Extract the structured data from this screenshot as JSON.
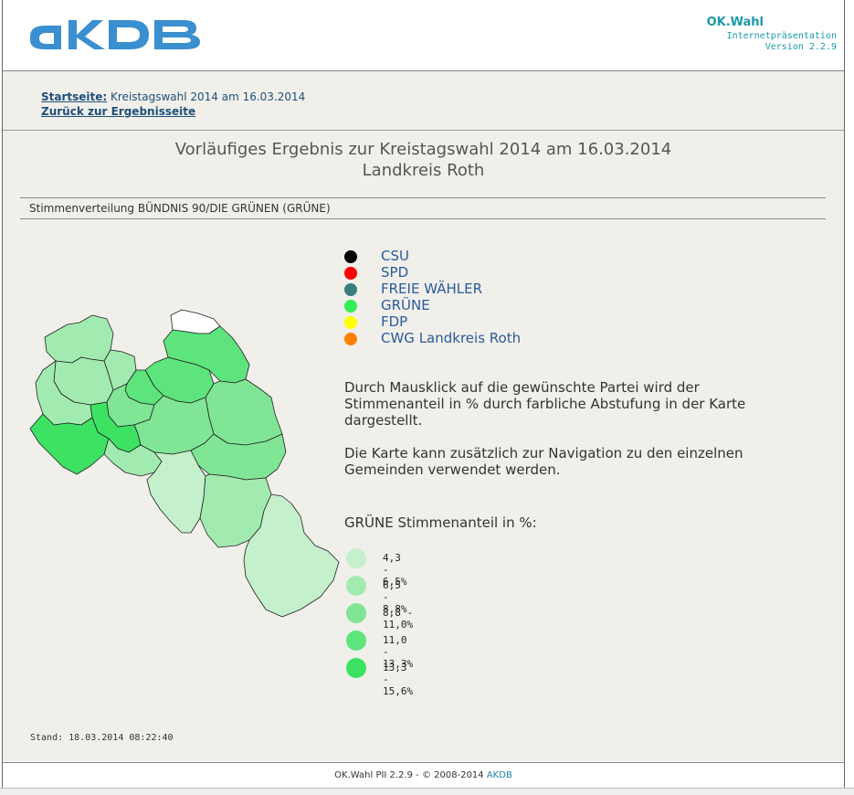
{
  "header": {
    "logo_text": "AKDB",
    "app_name": "OK.Wahl",
    "app_sub1": "Internetpräsentation",
    "app_sub2": "Version 2.2.9"
  },
  "nav": {
    "home_link": "Startseite:",
    "home_text": " Kreistagswahl 2014 am 16.03.2014",
    "back_link": "Zurück zur Ergebnisseite"
  },
  "main": {
    "title1": "Vorläufiges Ergebnis zur Kreistagswahl 2014 am 16.03.2014",
    "title2": "Landkreis Roth",
    "section_title": "Stimmenverteilung BÜNDNIS 90/DIE GRÜNEN (GRÜNE)",
    "parties": [
      {
        "label": "CSU",
        "color": "#000000"
      },
      {
        "label": "SPD",
        "color": "#ff0000"
      },
      {
        "label": "FREIE WÄHLER",
        "color": "#3a7f7f"
      },
      {
        "label": "GRÜNE",
        "color": "#33ee55"
      },
      {
        "label": "FDP",
        "color": "#ffff00"
      },
      {
        "label": "CWG Landkreis Roth",
        "color": "#ff8000"
      }
    ],
    "info1": "Durch Mausklick auf die gewünschte Partei wird der Stimmenanteil in % durch farbliche Abstufung in der Karte dargestellt.",
    "info2": "Die Karte kann zusätzlich zur Navigation zu den einzelnen Gemeinden verwendet werden.",
    "scale_title": "GRÜNE Stimmenanteil in %:",
    "scale": [
      {
        "label": "4,3 - 6,5%",
        "color": "#c4f0cc"
      },
      {
        "label": "6,5 - 8,8%",
        "color": "#a2ebb0"
      },
      {
        "label": "8,8 - 11,0%",
        "color": "#80e696"
      },
      {
        "label": "11,0 - 13,3%",
        "color": "#5ee47c"
      },
      {
        "label": "13,3 - 15,6%",
        "color": "#3de263"
      }
    ],
    "stand": "Stand: 18.03.2014 08:22:40"
  },
  "footer": {
    "text": "OK.Wahl PII 2.2.9 - © 2008-2014 ",
    "akdb": "AKDB"
  }
}
